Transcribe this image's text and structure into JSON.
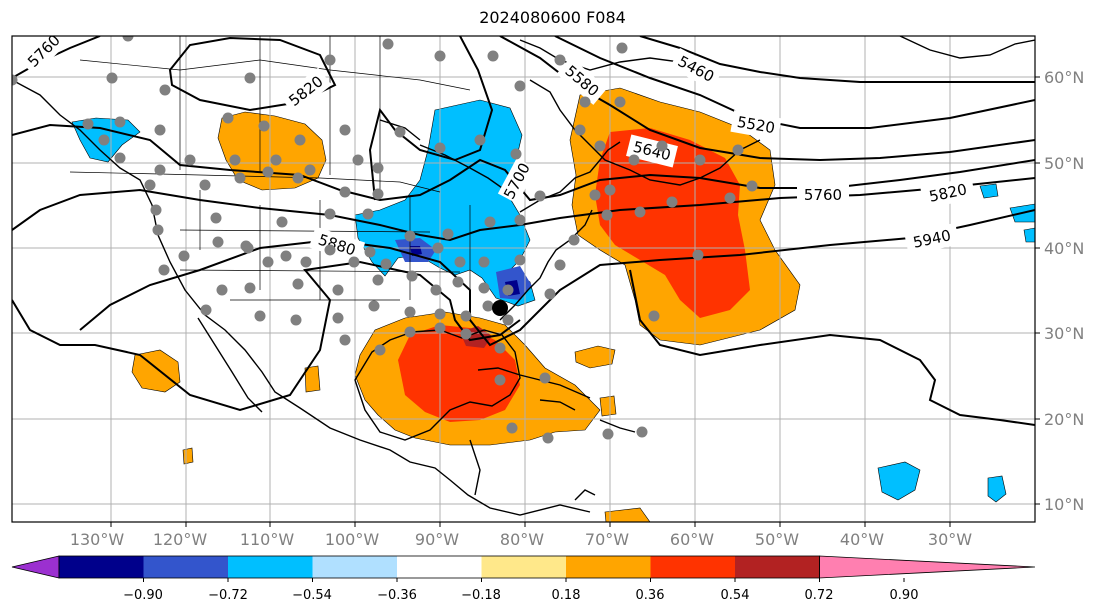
{
  "title": "2024080600 F084",
  "colors": {
    "cont": "#000000",
    "grid": "#b0b0b0",
    "station": "#808080",
    "marker": "#000000"
  },
  "lon_labels": [
    "130°W",
    "120°W",
    "110°W",
    "100°W",
    "90°W",
    "80°W",
    "70°W",
    "60°W",
    "50°W",
    "40°W",
    "30°W"
  ],
  "lat_labels": [
    "60°N",
    "50°N",
    "40°N",
    "30°N",
    "20°N",
    "10°N"
  ],
  "contour_labels": [
    "5760",
    "5820",
    "5580",
    "5460",
    "5520",
    "5640",
    "5700",
    "5760",
    "5820",
    "5880",
    "5940"
  ],
  "colorbar": {
    "ticks": [
      "−0.90",
      "−0.72",
      "−0.54",
      "−0.36",
      "−0.18",
      "0.18",
      "0.36",
      "0.54",
      "0.72",
      "0.90"
    ],
    "colors": [
      "#9b30d0",
      "#00008b",
      "#3355cc",
      "#00bfff",
      "#b0e0ff",
      "#ffffff",
      "#ffe88a",
      "#ffa500",
      "#ff3300",
      "#b22222",
      "#ff7fb0"
    ]
  }
}
